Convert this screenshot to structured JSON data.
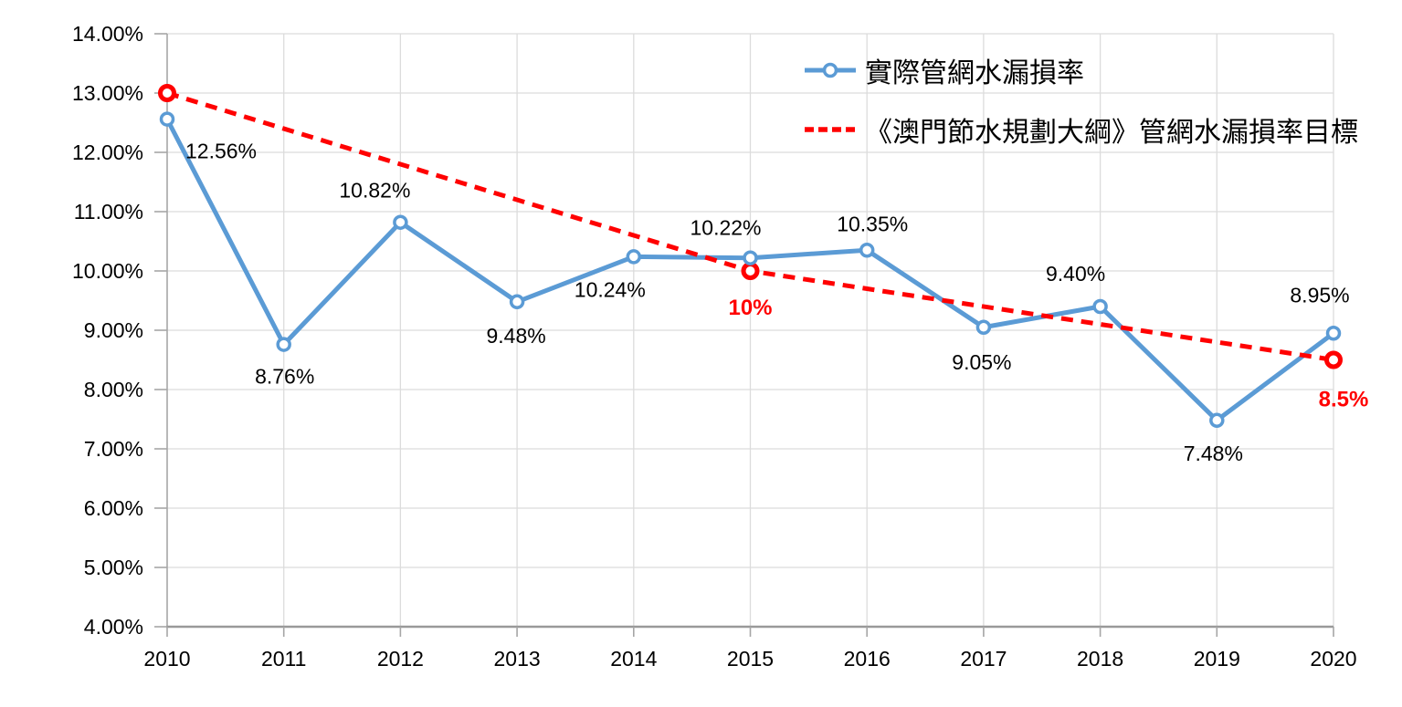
{
  "chart_data": {
    "type": "line",
    "title": "",
    "xlabel": "",
    "ylabel": "",
    "categories": [
      "2010",
      "2011",
      "2012",
      "2013",
      "2014",
      "2015",
      "2016",
      "2017",
      "2018",
      "2019",
      "2020"
    ],
    "y_axis": {
      "min": 4,
      "max": 14,
      "step": 1,
      "tick_labels": [
        "4.00%",
        "5.00%",
        "6.00%",
        "7.00%",
        "8.00%",
        "9.00%",
        "10.00%",
        "11.00%",
        "12.00%",
        "13.00%",
        "14.00%"
      ]
    },
    "grid": true,
    "legend_position": "top-right-inside",
    "style": {
      "grid_color": "#DCDCDC",
      "axis_color": "#A6A6A6",
      "x_axis_color": "#999999",
      "label_color": "#000000"
    },
    "series": [
      {
        "name": "實際管網水漏損率",
        "type": "line",
        "color": "#5B9BD5",
        "dashed": false,
        "marker": "open-circle",
        "points": [
          {
            "x": "2010",
            "y": 12.56,
            "label": "12.56%",
            "label_offset": [
              59,
              35
            ]
          },
          {
            "x": "2011",
            "y": 8.76,
            "label": "8.76%",
            "label_offset": [
              1,
              35
            ]
          },
          {
            "x": "2012",
            "y": 10.82,
            "label": "10.82%",
            "label_offset": [
              -28,
              -35
            ]
          },
          {
            "x": "2013",
            "y": 9.48,
            "label": "9.48%",
            "label_offset": [
              -1,
              37
            ]
          },
          {
            "x": "2014",
            "y": 10.24,
            "label": "10.24%",
            "label_offset": [
              -26,
              36
            ]
          },
          {
            "x": "2015",
            "y": 10.22,
            "label": "10.22%",
            "label_offset": [
              -27,
              -33
            ]
          },
          {
            "x": "2016",
            "y": 10.35,
            "label": "10.35%",
            "label_offset": [
              6,
              -29
            ]
          },
          {
            "x": "2017",
            "y": 9.05,
            "label": "9.05%",
            "label_offset": [
              -2,
              38
            ]
          },
          {
            "x": "2018",
            "y": 9.4,
            "label": "9.40%",
            "label_offset": [
              -27,
              -36
            ]
          },
          {
            "x": "2019",
            "y": 7.48,
            "label": "7.48%",
            "label_offset": [
              -4,
              36
            ]
          },
          {
            "x": "2020",
            "y": 8.95,
            "label": "8.95%",
            "label_offset": [
              -15,
              -42
            ]
          }
        ]
      },
      {
        "name": "《澳門節水規劃大綱》管網水漏損率目標",
        "type": "line",
        "color": "#FF0000",
        "dashed": true,
        "marker": "open-circle",
        "points": [
          {
            "x": "2010",
            "y": 13,
            "label": "",
            "label_offset": [
              0,
              0
            ]
          },
          {
            "x": "2015",
            "y": 10,
            "label": "10%",
            "label_offset": [
              0,
              40
            ]
          },
          {
            "x": "2020",
            "y": 8.5,
            "label": "8.5%",
            "label_offset": [
              11,
              43
            ]
          }
        ]
      }
    ]
  }
}
